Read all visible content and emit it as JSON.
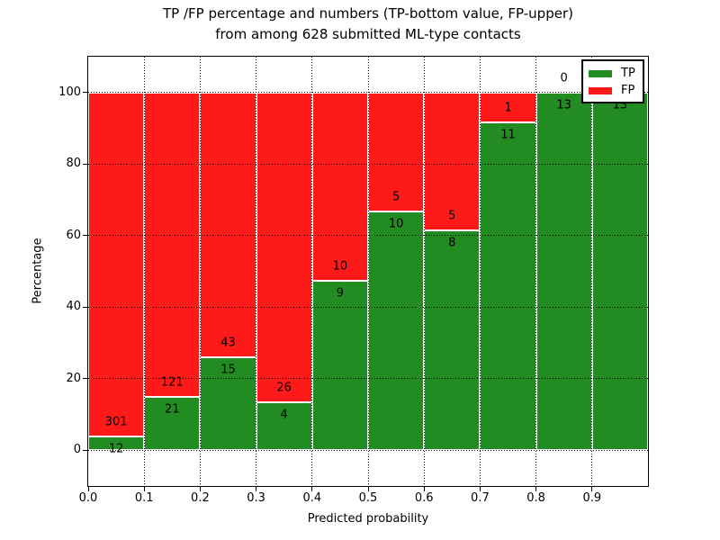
{
  "chart_data": {
    "type": "bar",
    "stacked_percentage": true,
    "title_line1": "TP /FP percentage and numbers (TP-bottom value, FP-upper)",
    "title_line2": "from among 628 submitted ML-type contacts",
    "xlabel": "Predicted probability",
    "ylabel": "Percentage",
    "total_submitted": 628,
    "bin_edges": [
      0.0,
      0.1,
      0.2,
      0.3,
      0.4,
      0.5,
      0.6,
      0.7,
      0.8,
      0.9,
      1.0
    ],
    "categories": [
      "0.0-0.1",
      "0.1-0.2",
      "0.2-0.3",
      "0.3-0.4",
      "0.4-0.5",
      "0.5-0.6",
      "0.6-0.7",
      "0.7-0.8",
      "0.8-0.9",
      "0.9-1.0"
    ],
    "series": [
      {
        "name": "TP",
        "color": "#228B22",
        "counts": [
          12,
          21,
          15,
          4,
          9,
          10,
          8,
          11,
          13,
          13
        ]
      },
      {
        "name": "FP",
        "color": "#FF1A1A",
        "counts": [
          301,
          121,
          43,
          26,
          10,
          5,
          5,
          1,
          0,
          0
        ]
      }
    ],
    "tp_percent": [
      3.8,
      14.8,
      25.9,
      13.3,
      47.4,
      66.7,
      61.5,
      91.7,
      100.0,
      100.0
    ],
    "xticks": [
      "0.0",
      "0.1",
      "0.2",
      "0.3",
      "0.4",
      "0.5",
      "0.6",
      "0.7",
      "0.8",
      "0.9"
    ],
    "yticks": [
      0,
      20,
      40,
      60,
      80,
      100
    ],
    "xlim": [
      0.0,
      1.0
    ],
    "ylim": [
      -10,
      110
    ],
    "grid": {
      "visible": true,
      "style": "dotted",
      "color": "#000000"
    },
    "legend": {
      "position": "upper right",
      "entries": [
        {
          "label": "TP",
          "color": "#228B22"
        },
        {
          "label": "FP",
          "color": "#FF1A1A"
        }
      ]
    }
  }
}
